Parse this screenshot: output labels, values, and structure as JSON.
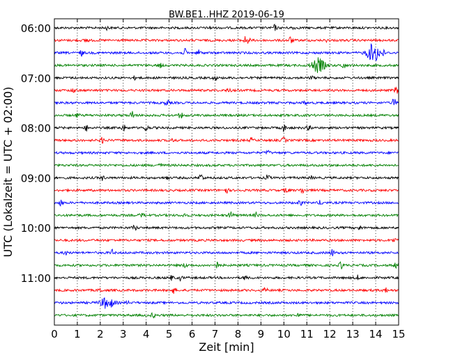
{
  "chart_data": {
    "type": "line",
    "title": "BW.BE1..HHZ 2019-06-19",
    "xlabel": "Zeit  [min]",
    "ylabel": "UTC (Lokalzeit = UTC + 02:00)",
    "xlim": [
      0,
      15
    ],
    "x_ticks": [
      "0",
      "1",
      "2",
      "3",
      "4",
      "5",
      "6",
      "7",
      "8",
      "9",
      "10",
      "11",
      "12",
      "13",
      "14",
      "15"
    ],
    "y_tick_labels": [
      {
        "row": 0,
        "label": "06:00"
      },
      {
        "row": 4,
        "label": "07:00"
      },
      {
        "row": 8,
        "label": "08:00"
      },
      {
        "row": 12,
        "label": "09:00"
      },
      {
        "row": 16,
        "label": "10:00"
      },
      {
        "row": 20,
        "label": "11:00"
      }
    ],
    "grid": {
      "vertical": true,
      "style": "dotted"
    },
    "colors": [
      "#000000",
      "#ff0000",
      "#0000ff",
      "#008000"
    ],
    "series": [
      {
        "start": "06:00",
        "color": "#000000",
        "bursts": [
          {
            "t": 2.3,
            "a": 2
          },
          {
            "t": 6.8,
            "a": 2
          },
          {
            "t": 9.6,
            "a": 4
          },
          {
            "t": 10.4,
            "a": 2
          }
        ]
      },
      {
        "start": "06:15",
        "color": "#ff0000",
        "bursts": [
          {
            "t": 1.4,
            "a": 3
          },
          {
            "t": 8.3,
            "a": 5
          },
          {
            "t": 8.45,
            "a": 4
          },
          {
            "t": 10.3,
            "a": 5
          },
          {
            "t": 11.9,
            "a": 2
          }
        ]
      },
      {
        "start": "06:30",
        "color": "#0000ff",
        "bursts": [
          {
            "t": 1.2,
            "a": 4
          },
          {
            "t": 5.7,
            "a": 5
          },
          {
            "t": 6.3,
            "a": 4
          },
          {
            "t": 13.9,
            "a": 13
          },
          {
            "t": 14.3,
            "a": 4
          }
        ]
      },
      {
        "start": "06:45",
        "color": "#008000",
        "bursts": [
          {
            "t": 4.6,
            "a": 3
          },
          {
            "t": 11.5,
            "a": 10
          },
          {
            "t": 12.6,
            "a": 5
          }
        ]
      },
      {
        "start": "07:00",
        "color": "#000000",
        "bursts": [
          {
            "t": 3.5,
            "a": 2
          },
          {
            "t": 7.0,
            "a": 3
          },
          {
            "t": 11.2,
            "a": 2
          }
        ]
      },
      {
        "start": "07:15",
        "color": "#ff0000",
        "bursts": [
          {
            "t": 0.8,
            "a": 3
          },
          {
            "t": 7.6,
            "a": 3
          },
          {
            "t": 14.9,
            "a": 5
          }
        ]
      },
      {
        "start": "07:30",
        "color": "#0000ff",
        "bursts": [
          {
            "t": 0.2,
            "a": 2
          },
          {
            "t": 4.9,
            "a": 4
          },
          {
            "t": 10.9,
            "a": 2
          },
          {
            "t": 14.8,
            "a": 6
          }
        ]
      },
      {
        "start": "07:45",
        "color": "#008000",
        "bursts": [
          {
            "t": 1.0,
            "a": 3
          },
          {
            "t": 3.4,
            "a": 6
          },
          {
            "t": 5.5,
            "a": 4
          }
        ]
      },
      {
        "start": "08:00",
        "color": "#000000",
        "bursts": [
          {
            "t": 1.4,
            "a": 4
          },
          {
            "t": 3.0,
            "a": 5
          },
          {
            "t": 4.0,
            "a": 5
          },
          {
            "t": 10.0,
            "a": 5
          },
          {
            "t": 11.1,
            "a": 4
          }
        ]
      },
      {
        "start": "08:15",
        "color": "#ff0000",
        "bursts": [
          {
            "t": 2.1,
            "a": 4
          },
          {
            "t": 5.2,
            "a": 3
          },
          {
            "t": 8.6,
            "a": 3
          },
          {
            "t": 10.0,
            "a": 4
          }
        ]
      },
      {
        "start": "08:30",
        "color": "#0000ff",
        "bursts": [
          {
            "t": 9.3,
            "a": 3
          }
        ]
      },
      {
        "start": "08:45",
        "color": "#008000",
        "bursts": [
          {
            "t": 4.6,
            "a": 3
          }
        ]
      },
      {
        "start": "09:00",
        "color": "#000000",
        "bursts": [
          {
            "t": 2.1,
            "a": 3
          },
          {
            "t": 4.9,
            "a": 3
          },
          {
            "t": 6.4,
            "a": 6
          },
          {
            "t": 9.3,
            "a": 4
          },
          {
            "t": 11.2,
            "a": 2
          }
        ]
      },
      {
        "start": "09:15",
        "color": "#ff0000",
        "bursts": [
          {
            "t": 7.5,
            "a": 4
          },
          {
            "t": 10.1,
            "a": 4
          },
          {
            "t": 10.8,
            "a": 4
          }
        ]
      },
      {
        "start": "09:30",
        "color": "#0000ff",
        "bursts": [
          {
            "t": 0.3,
            "a": 4
          },
          {
            "t": 10.7,
            "a": 4
          },
          {
            "t": 11.6,
            "a": 3
          }
        ]
      },
      {
        "start": "09:45",
        "color": "#008000",
        "bursts": [
          {
            "t": 3.8,
            "a": 3
          },
          {
            "t": 5.7,
            "a": 3
          },
          {
            "t": 7.7,
            "a": 6
          },
          {
            "t": 8.8,
            "a": 3
          }
        ]
      },
      {
        "start": "10:00",
        "color": "#000000",
        "bursts": [
          {
            "t": 3.5,
            "a": 4
          },
          {
            "t": 13.3,
            "a": 3
          }
        ]
      },
      {
        "start": "10:15",
        "color": "#ff0000",
        "bursts": [
          {
            "t": 14.8,
            "a": 3
          }
        ]
      },
      {
        "start": "10:30",
        "color": "#0000ff",
        "bursts": [
          {
            "t": 0.5,
            "a": 3
          },
          {
            "t": 2.5,
            "a": 4
          },
          {
            "t": 12.1,
            "a": 5
          }
        ]
      },
      {
        "start": "10:45",
        "color": "#008000",
        "bursts": [
          {
            "t": 5.7,
            "a": 3
          },
          {
            "t": 7.1,
            "a": 4
          },
          {
            "t": 12.5,
            "a": 5
          },
          {
            "t": 14.9,
            "a": 5
          }
        ]
      },
      {
        "start": "11:00",
        "color": "#000000",
        "bursts": [
          {
            "t": 5.1,
            "a": 3
          },
          {
            "t": 5.5,
            "a": 3
          },
          {
            "t": 8.3,
            "a": 3
          },
          {
            "t": 13.2,
            "a": 3
          }
        ]
      },
      {
        "start": "11:15",
        "color": "#ff0000",
        "bursts": [
          {
            "t": 2.0,
            "a": 3
          },
          {
            "t": 5.2,
            "a": 4
          },
          {
            "t": 9.2,
            "a": 3
          },
          {
            "t": 14.4,
            "a": 5
          }
        ]
      },
      {
        "start": "11:30",
        "color": "#0000ff",
        "bursts": [
          {
            "t": 2.3,
            "a": 8
          },
          {
            "t": 3.2,
            "a": 2
          }
        ]
      },
      {
        "start": "11:45",
        "color": "#008000",
        "bursts": [
          {
            "t": 4.3,
            "a": 3
          },
          {
            "t": 10.6,
            "a": 3
          }
        ]
      }
    ]
  }
}
